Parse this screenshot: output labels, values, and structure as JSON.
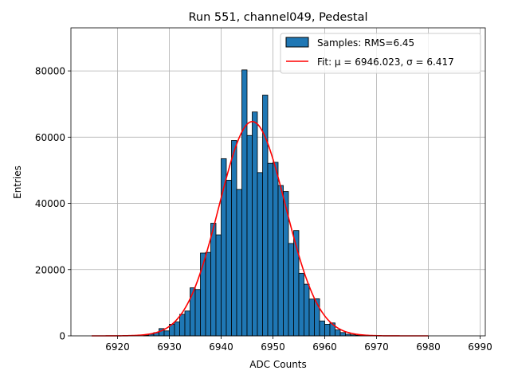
{
  "chart_data": {
    "type": "bar",
    "title": "Run 551, channel049, Pedestal",
    "xlabel": "ADC Counts",
    "ylabel": "Entries",
    "xlim": [
      6911,
      6991
    ],
    "ylim": [
      0,
      93000
    ],
    "xticks": [
      6920,
      6930,
      6940,
      6950,
      6960,
      6970,
      6980,
      6990
    ],
    "yticks": [
      0,
      20000,
      40000,
      60000,
      80000
    ],
    "grid": true,
    "legend_position": "top-right",
    "colors": {
      "bar": "#1f77b4",
      "bar_edge": "#000000",
      "fit": "#ff0000"
    },
    "histogram": {
      "name": "Samples: RMS=6.45",
      "bin_width": 1,
      "bin_starts": [
        6925,
        6926,
        6927,
        6928,
        6929,
        6930,
        6931,
        6932,
        6933,
        6934,
        6935,
        6936,
        6937,
        6938,
        6939,
        6940,
        6941,
        6942,
        6943,
        6944,
        6945,
        6946,
        6947,
        6948,
        6949,
        6950,
        6951,
        6952,
        6953,
        6954,
        6955,
        6956,
        6957,
        6958,
        6959,
        6960,
        6961,
        6962,
        6963,
        6964,
        6965,
        6966,
        6967,
        6968
      ],
      "values": [
        200,
        500,
        1000,
        2200,
        1500,
        3500,
        4200,
        6500,
        7500,
        14500,
        14000,
        25000,
        25200,
        34000,
        30500,
        53500,
        47000,
        59000,
        44200,
        80300,
        60500,
        67600,
        49300,
        72700,
        52100,
        52400,
        45400,
        43600,
        27900,
        31800,
        18900,
        15600,
        11100,
        11200,
        4500,
        3500,
        3900,
        1800,
        1000,
        500,
        300,
        200,
        100,
        50
      ]
    },
    "fit": {
      "name": "Fit: μ = 6946.023, σ = 6.417",
      "mu": 6946.023,
      "sigma": 6.417,
      "amplitude": 64700,
      "x_range": [
        6915,
        6980
      ]
    }
  }
}
